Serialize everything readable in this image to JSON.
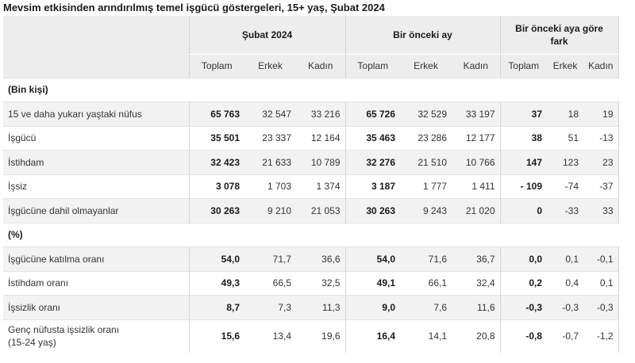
{
  "title": "Mevsim etkisinden arındırılmış temel işgücü göstergeleri, 15+ yaş, Şubat 2024",
  "groups": [
    "Şubat 2024",
    "Bir önceki ay",
    "Bir önceki aya göre fark"
  ],
  "subheaders": [
    "Toplam",
    "Erkek",
    "Kadın",
    "Toplam",
    "Erkek",
    "Kadın",
    "Toplam",
    "Erkek",
    "Kadın"
  ],
  "section1": "(Bin kişi)",
  "rows1": [
    {
      "label": "15 ve daha yukarı yaştaki nüfus",
      "v": [
        "65 763",
        "32 547",
        "33 216",
        "65 726",
        "32 529",
        "33 197",
        "37",
        "18",
        "19"
      ]
    },
    {
      "label": "İşgücü",
      "v": [
        "35 501",
        "23 337",
        "12 164",
        "35 463",
        "23 286",
        "12 177",
        "38",
        "51",
        "-13"
      ]
    },
    {
      "label": "İstihdam",
      "v": [
        "32 423",
        "21 633",
        "10 789",
        "32 276",
        "21 510",
        "10 766",
        "147",
        "123",
        "23"
      ]
    },
    {
      "label": "İşsiz",
      "v": [
        "3 078",
        "1 703",
        "1 374",
        "3 187",
        "1 777",
        "1 411",
        "- 109",
        "-74",
        "-37"
      ]
    },
    {
      "label": "İşgücüne dahil olmayanlar",
      "v": [
        "30 263",
        "9 210",
        "21 053",
        "30 263",
        "9 243",
        "21 020",
        "0",
        "-33",
        "33"
      ]
    }
  ],
  "section2": "(%)",
  "rows2": [
    {
      "label": "İşgücüne katılma oranı",
      "v": [
        "54,0",
        "71,7",
        "36,6",
        "54,0",
        "71,6",
        "36,7",
        "0,0",
        "0,1",
        "-0,1"
      ]
    },
    {
      "label": "İstihdam oranı",
      "v": [
        "49,3",
        "66,5",
        "32,5",
        "49,1",
        "66,1",
        "32,4",
        "0,2",
        "0,4",
        "0,1"
      ]
    },
    {
      "label": "İşsizlik oranı",
      "v": [
        "8,7",
        "7,3",
        "11,3",
        "9,0",
        "7,6",
        "11,6",
        "-0,3",
        "-0,3",
        "-0,3"
      ]
    },
    {
      "label": "Genç nüfusta işsizlik oranı (15-24 yaş)",
      "label_line1": "Genç nüfusta işsizlik oranı",
      "label_line2": "(15-24 yaş)",
      "v": [
        "15,6",
        "13,4",
        "19,6",
        "16,4",
        "14,1",
        "20,8",
        "-0,8",
        "-0,7",
        "-1,2"
      ]
    }
  ]
}
